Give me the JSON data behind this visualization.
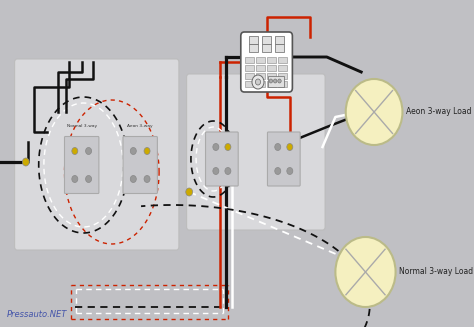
{
  "bg_color": "#c0c0c4",
  "watermark": "Pressauto.NET",
  "label_normal_3way": "Normal 3-way Load",
  "label_aeon_3way": "Aeon 3-way Load",
  "label_normal_switch": "Normal 3-way",
  "label_aeon_switch": "Aeon 3-way",
  "wire_black": "#111111",
  "wire_red": "#cc2200",
  "wire_white": "#e8e8e8",
  "wire_gray": "#888888",
  "terminal_gold": "#ccaa00",
  "terminal_gray": "#999999",
  "switch_face": "#c8c8cc",
  "plate_color": "#dcdcdf",
  "controller_bg": "#f0f0f0"
}
